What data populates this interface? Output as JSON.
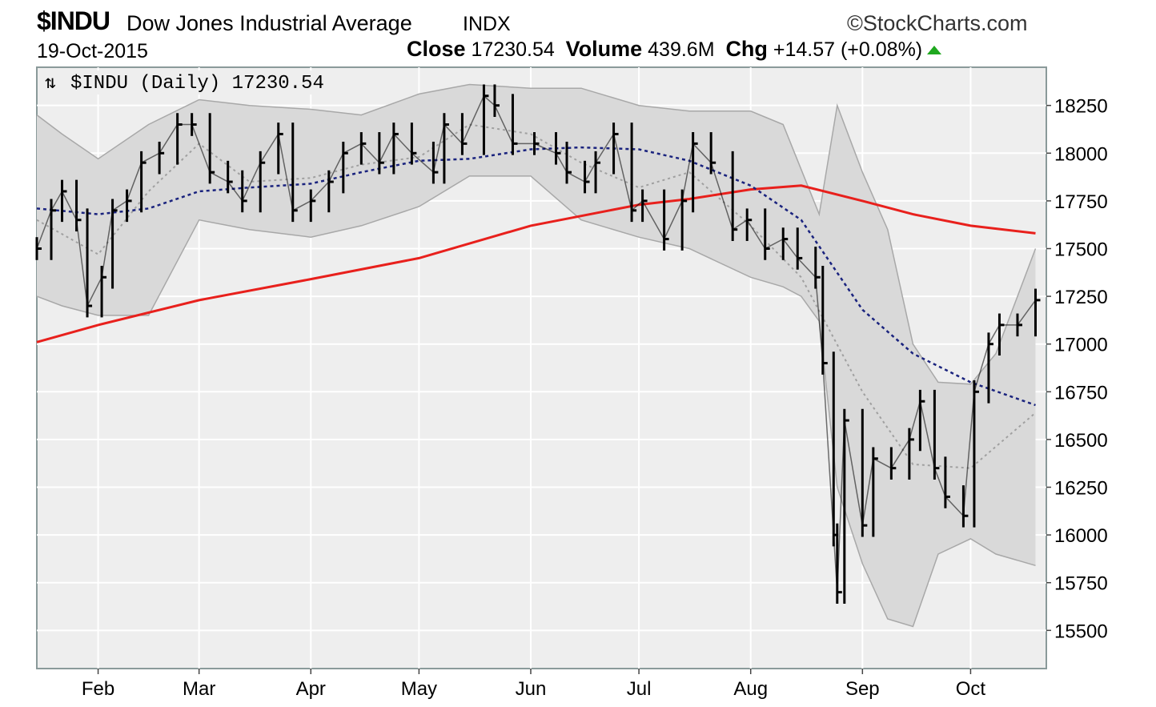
{
  "header": {
    "symbol": "$INDU",
    "name": "Dow Jones Industrial Average",
    "exchange": "INDX",
    "source": "StockCharts.com",
    "date": "19-Oct-2015",
    "close_label": "Close",
    "close_value": "17230.54",
    "volume_label": "Volume",
    "volume_value": "439.6M",
    "chg_label": "Chg",
    "chg_value": "+14.57 (+0.08%)",
    "legend": "$INDU (Daily) 17230.54"
  },
  "colors": {
    "price": "#000000",
    "sma200": "#e8201c",
    "sma50": "#1a237e",
    "bb_mid": "#a0a0a0",
    "bb_fill": "#d9d9d9",
    "plot_bg": "#eeeeee",
    "grid": "#ffffff",
    "up_arrow": "#1fa81f"
  },
  "chart_data": {
    "type": "line",
    "title": "$INDU (Daily) 17230.54",
    "x_type": "date",
    "xlim": [
      "2015-01-15",
      "2015-10-22"
    ],
    "ylim": [
      15300,
      18450
    ],
    "y_ticks": [
      15500,
      15750,
      16000,
      16250,
      16500,
      16750,
      17000,
      17250,
      17500,
      17750,
      18000,
      18250
    ],
    "x_ticks": [
      {
        "date": "2015-02-01",
        "label": "Feb"
      },
      {
        "date": "2015-03-01",
        "label": "Mar"
      },
      {
        "date": "2015-04-01",
        "label": "Apr"
      },
      {
        "date": "2015-05-01",
        "label": "May"
      },
      {
        "date": "2015-06-01",
        "label": "Jun"
      },
      {
        "date": "2015-07-01",
        "label": "Jul"
      },
      {
        "date": "2015-08-01",
        "label": "Aug"
      },
      {
        "date": "2015-09-01",
        "label": "Sep"
      },
      {
        "date": "2015-10-01",
        "label": "Oct"
      }
    ],
    "grid": true,
    "series": [
      {
        "kind": "price",
        "x": [
          "2015-01-15",
          "2015-01-19",
          "2015-01-22",
          "2015-01-26",
          "2015-01-29",
          "2015-02-02",
          "2015-02-05",
          "2015-02-09",
          "2015-02-13",
          "2015-02-18",
          "2015-02-23",
          "2015-02-27",
          "2015-03-04",
          "2015-03-09",
          "2015-03-13",
          "2015-03-18",
          "2015-03-23",
          "2015-03-27",
          "2015-04-01",
          "2015-04-06",
          "2015-04-10",
          "2015-04-15",
          "2015-04-20",
          "2015-04-24",
          "2015-04-29",
          "2015-05-05",
          "2015-05-08",
          "2015-05-13",
          "2015-05-19",
          "2015-05-22",
          "2015-05-27",
          "2015-06-02",
          "2015-06-08",
          "2015-06-11",
          "2015-06-16",
          "2015-06-19",
          "2015-06-24",
          "2015-06-29",
          "2015-07-02",
          "2015-07-08",
          "2015-07-13",
          "2015-07-16",
          "2015-07-21",
          "2015-07-27",
          "2015-07-31",
          "2015-08-05",
          "2015-08-10",
          "2015-08-14",
          "2015-08-19",
          "2015-08-21",
          "2015-08-24",
          "2015-08-25",
          "2015-08-27",
          "2015-09-01",
          "2015-09-04",
          "2015-09-09",
          "2015-09-14",
          "2015-09-17",
          "2015-09-21",
          "2015-09-24",
          "2015-09-29",
          "2015-10-02",
          "2015-10-06",
          "2015-10-09",
          "2015-10-14",
          "2015-10-19"
        ],
        "y": [
          17500,
          17700,
          17800,
          17650,
          17200,
          17350,
          17700,
          17750,
          17950,
          18000,
          18150,
          18150,
          17900,
          17850,
          17750,
          17950,
          18100,
          17700,
          17750,
          17850,
          18000,
          18050,
          17950,
          18100,
          18000,
          17900,
          18150,
          18050,
          18300,
          18250,
          18050,
          18050,
          18000,
          17900,
          17850,
          17950,
          18100,
          17700,
          17750,
          17550,
          17750,
          18050,
          17950,
          17600,
          17650,
          17500,
          17550,
          17450,
          17350,
          16900,
          16000,
          15700,
          16600,
          16050,
          16400,
          16350,
          16500,
          16700,
          16350,
          16200,
          16100,
          16750,
          17000,
          17100,
          17100,
          17230
        ]
      },
      {
        "name": "",
        "kind": "sma50",
        "x": [
          "2015-01-15",
          "2015-02-01",
          "2015-02-15",
          "2015-03-01",
          "2015-03-15",
          "2015-04-01",
          "2015-04-15",
          "2015-05-01",
          "2015-05-15",
          "2015-06-01",
          "2015-06-15",
          "2015-07-01",
          "2015-07-15",
          "2015-08-01",
          "2015-08-15",
          "2015-09-01",
          "2015-09-15",
          "2015-10-01",
          "2015-10-19"
        ],
        "y": [
          17710,
          17680,
          17710,
          17800,
          17820,
          17840,
          17900,
          17960,
          17970,
          18020,
          18030,
          18020,
          17960,
          17830,
          17650,
          17180,
          16950,
          16800,
          16680
        ]
      },
      {
        "name": "",
        "kind": "sma200",
        "x": [
          "2015-01-15",
          "2015-02-01",
          "2015-03-01",
          "2015-04-01",
          "2015-05-01",
          "2015-06-01",
          "2015-07-01",
          "2015-07-15",
          "2015-08-01",
          "2015-08-15",
          "2015-09-01",
          "2015-09-15",
          "2015-10-01",
          "2015-10-19"
        ],
        "y": [
          17010,
          17100,
          17230,
          17340,
          17450,
          17620,
          17730,
          17760,
          17810,
          17830,
          17750,
          17680,
          17620,
          17580
        ]
      },
      {
        "name": "",
        "kind": "bb_mid",
        "x": [
          "2015-01-15",
          "2015-02-01",
          "2015-02-15",
          "2015-03-01",
          "2015-03-15",
          "2015-04-01",
          "2015-04-15",
          "2015-05-01",
          "2015-05-15",
          "2015-06-01",
          "2015-06-15",
          "2015-07-01",
          "2015-07-15",
          "2015-08-01",
          "2015-08-15",
          "2015-09-01",
          "2015-09-15",
          "2015-10-01",
          "2015-10-19"
        ],
        "y": [
          17650,
          17470,
          17800,
          18050,
          17850,
          17870,
          17940,
          17980,
          18150,
          18100,
          17950,
          17820,
          17900,
          17620,
          17350,
          16750,
          16370,
          16350,
          16640
        ]
      },
      {
        "name": "",
        "kind": "bb_upper",
        "x": [
          "2015-01-15",
          "2015-01-22",
          "2015-02-01",
          "2015-02-15",
          "2015-03-01",
          "2015-03-15",
          "2015-04-01",
          "2015-04-15",
          "2015-05-01",
          "2015-05-15",
          "2015-06-01",
          "2015-06-15",
          "2015-07-01",
          "2015-07-15",
          "2015-08-01",
          "2015-08-10",
          "2015-08-20",
          "2015-08-25",
          "2015-09-01",
          "2015-09-08",
          "2015-09-15",
          "2015-09-22",
          "2015-10-01",
          "2015-10-08",
          "2015-10-19"
        ],
        "y": [
          18200,
          18100,
          17970,
          18150,
          18280,
          18250,
          18230,
          18200,
          18310,
          18360,
          18340,
          18340,
          18250,
          18220,
          18220,
          18150,
          17680,
          18250,
          17900,
          17600,
          17000,
          16800,
          16790,
          16950,
          17500
        ]
      },
      {
        "name": "",
        "kind": "bb_lower",
        "x": [
          "2015-01-15",
          "2015-01-22",
          "2015-02-01",
          "2015-02-15",
          "2015-03-01",
          "2015-03-15",
          "2015-04-01",
          "2015-04-15",
          "2015-05-01",
          "2015-05-15",
          "2015-06-01",
          "2015-06-15",
          "2015-07-01",
          "2015-07-15",
          "2015-08-01",
          "2015-08-10",
          "2015-08-15",
          "2015-08-20",
          "2015-08-25",
          "2015-09-01",
          "2015-09-08",
          "2015-09-15",
          "2015-09-22",
          "2015-10-01",
          "2015-10-08",
          "2015-10-19"
        ],
        "y": [
          17250,
          17200,
          17150,
          17150,
          17650,
          17600,
          17560,
          17620,
          17720,
          17880,
          17880,
          17650,
          17560,
          17500,
          17350,
          17300,
          17250,
          17120,
          16250,
          15850,
          15560,
          15520,
          15900,
          15980,
          15900,
          15840
        ]
      }
    ]
  }
}
